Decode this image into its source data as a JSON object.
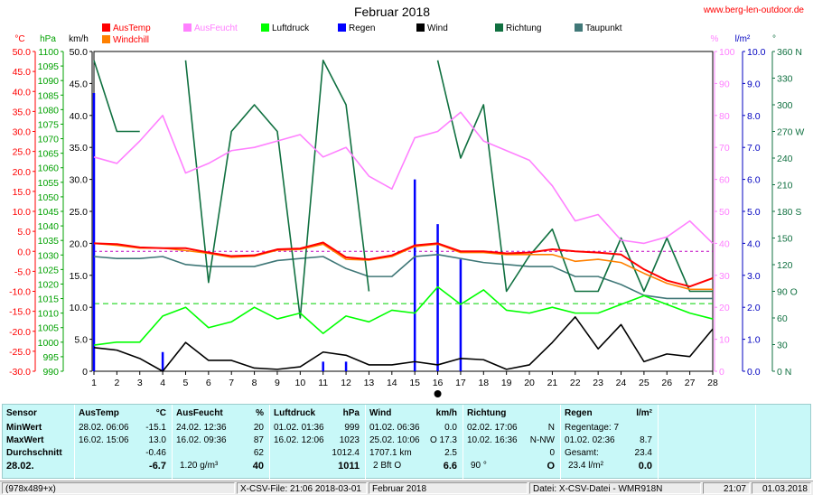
{
  "title": "Februar 2018",
  "website": "www.berg-len-outdoor.de",
  "legend": [
    {
      "label": "AusTemp",
      "color": "#ff0000"
    },
    {
      "label": "Windchill",
      "color": "#ff8000"
    },
    {
      "label": "AusFeucht",
      "color": "#ff80ff"
    },
    {
      "label": "Luftdruck",
      "color": "#00ff00"
    },
    {
      "label": "Regen",
      "color": "#0000ff"
    },
    {
      "label": "Wind",
      "color": "#000000"
    },
    {
      "label": "Richtung",
      "color": "#107040"
    },
    {
      "label": "Taupunkt",
      "color": "#407878"
    }
  ],
  "axes": {
    "temp": {
      "unit": "°C",
      "color": "#ff0000",
      "ticks": [
        "50.0",
        "45.0",
        "40.0",
        "35.0",
        "30.0",
        "25.0",
        "20.0",
        "15.0",
        "10.0",
        "5.0",
        "0.0",
        "-5.0",
        "-10.0",
        "-15.0",
        "-20.0",
        "-25.0",
        "-30.0"
      ]
    },
    "pressure": {
      "unit": "hPa",
      "color": "#00a000",
      "ticks": [
        "1100",
        "1095",
        "1090",
        "1085",
        "1080",
        "1075",
        "1070",
        "1065",
        "1060",
        "1055",
        "1050",
        "1045",
        "1040",
        "1035",
        "1030",
        "1025",
        "1020",
        "1015",
        "1010",
        "1005",
        "1000",
        "995",
        "990"
      ]
    },
    "wind": {
      "unit": "km/h",
      "color": "#000000",
      "ticks": [
        "50.0",
        "45.0",
        "40.0",
        "35.0",
        "30.0",
        "25.0",
        "20.0",
        "15.0",
        "10.0",
        "5.0",
        "0"
      ]
    },
    "humidity": {
      "unit": "%",
      "color": "#ff80ff",
      "ticks": [
        "100",
        "90",
        "80",
        "70",
        "60",
        "50",
        "40",
        "30",
        "20",
        "10",
        "0"
      ]
    },
    "rain": {
      "unit": "l/m²",
      "color": "#0000c0",
      "ticks": [
        "10.0",
        "9.0",
        "8.0",
        "7.0",
        "6.0",
        "5.0",
        "4.0",
        "3.0",
        "2.0",
        "1.0",
        "0.0"
      ]
    },
    "direction": {
      "unit": "°",
      "color": "#107040",
      "ticks": [
        "360 N",
        "330",
        "300",
        "270 W",
        "240",
        "210",
        "180 S",
        "150",
        "120",
        "90 O",
        "60",
        "30",
        "0 N"
      ]
    }
  },
  "chart_data": {
    "type": "line",
    "title": "Februar 2018",
    "x": [
      1,
      2,
      3,
      4,
      5,
      6,
      7,
      8,
      9,
      10,
      11,
      12,
      13,
      14,
      15,
      16,
      17,
      18,
      19,
      20,
      21,
      22,
      23,
      24,
      25,
      26,
      27,
      28
    ],
    "series": [
      {
        "name": "AusTemp",
        "unit": "°C",
        "values": [
          2.0,
          1.8,
          1.0,
          0.8,
          0.8,
          -0.3,
          -1.2,
          -1.0,
          0.5,
          0.7,
          2.2,
          -1.5,
          -2.0,
          -1.0,
          1.5,
          2.0,
          0.0,
          0.0,
          -0.5,
          -0.3,
          0.5,
          0.0,
          -0.3,
          -0.8,
          -4.5,
          -7.3,
          -8.8,
          -6.7
        ]
      },
      {
        "name": "Windchill",
        "unit": "°C",
        "values": [
          2.0,
          1.5,
          0.8,
          0.8,
          0.2,
          -0.5,
          -1.5,
          -1.2,
          0.3,
          0.5,
          1.8,
          -2.0,
          -2.2,
          -1.3,
          1.2,
          1.8,
          -0.3,
          -0.3,
          -0.8,
          -0.8,
          -0.8,
          -2.5,
          -2.0,
          -2.8,
          -5.5,
          -8.0,
          -9.5,
          -9.5
        ]
      },
      {
        "name": "AusFeucht",
        "unit": "%",
        "values": [
          67,
          65,
          72,
          80,
          62,
          65,
          69,
          70,
          72,
          74,
          67,
          70,
          61,
          57,
          73,
          75,
          81,
          72,
          69,
          66,
          58,
          47,
          49,
          41,
          40,
          42,
          47,
          40
        ]
      },
      {
        "name": "Luftdruck",
        "unit": "hPa",
        "values": [
          999,
          1000,
          1000,
          1009,
          1012,
          1005,
          1007,
          1012,
          1008,
          1010,
          1003,
          1009,
          1007,
          1011,
          1010,
          1019,
          1013,
          1018,
          1011,
          1010,
          1012,
          1010,
          1010,
          1013,
          1016,
          1013,
          1010,
          1008
        ]
      },
      {
        "name": "Regen",
        "unit": "l/m²",
        "values": [
          8.7,
          0,
          0,
          0.6,
          0,
          0,
          0,
          0,
          0,
          0,
          0.3,
          0.3,
          0,
          0,
          6.0,
          4.6,
          3.5,
          0,
          0,
          0,
          0,
          0,
          0,
          0,
          0,
          0,
          0,
          0
        ]
      },
      {
        "name": "Wind",
        "unit": "km/h",
        "values": [
          3.7,
          3.3,
          2.0,
          0.0,
          4.5,
          1.7,
          1.7,
          0.5,
          0.3,
          0.7,
          3.0,
          2.5,
          1.0,
          1.0,
          1.5,
          1.0,
          2.0,
          1.8,
          0.3,
          1.0,
          4.5,
          8.5,
          3.5,
          7.3,
          1.5,
          2.7,
          2.3,
          6.6
        ]
      },
      {
        "name": "Richtung",
        "unit": "°",
        "values": [
          350,
          270,
          270,
          null,
          350,
          100,
          270,
          300,
          270,
          60,
          350,
          300,
          90,
          null,
          null,
          350,
          240,
          300,
          90,
          130,
          160,
          90,
          90,
          150,
          90,
          150,
          90,
          90
        ]
      },
      {
        "name": "Taupunkt",
        "unit": "°C",
        "values": [
          -1.3,
          -1.8,
          -1.8,
          -1.3,
          -3.3,
          -3.8,
          -3.8,
          -3.8,
          -2.3,
          -1.8,
          -1.3,
          -4.3,
          -6.3,
          -6.3,
          -1.3,
          -0.8,
          -1.8,
          -2.8,
          -3.3,
          -3.8,
          -3.8,
          -6.3,
          -6.3,
          -8.3,
          -11.0,
          -11.8,
          -11.8,
          -11.8
        ]
      }
    ],
    "xlim": [
      1,
      28
    ],
    "ylim_temp": [
      -30,
      50
    ],
    "ylim_pressure": [
      990,
      1100
    ],
    "ylim_wind": [
      0,
      50
    ],
    "ylim_humidity": [
      0,
      100
    ],
    "ylim_rain": [
      0,
      10
    ],
    "ylim_direction": [
      0,
      360
    ],
    "grid": false,
    "legend_position": "top"
  },
  "stats": {
    "sensor": {
      "header": "Sensor",
      "rows": [
        "MinWert",
        "MaxWert",
        "Durchschnitt",
        "28.02."
      ]
    },
    "austemp": {
      "header": "AusTemp",
      "unit": "°C",
      "min_date": "28.02.  06:06",
      "min": "-15.1",
      "max_date": "16.02.  15:06",
      "max": "13.0",
      "avg": "-0.46",
      "today": "-6.7"
    },
    "ausfeucht": {
      "header": "AusFeucht",
      "unit": "%",
      "min_date": "24.02.  12:36",
      "min": "20",
      "max_date": "16.02.  09:36",
      "max": "87",
      "avg": "62",
      "today_extra": "1.20 g/m³",
      "today": "40"
    },
    "luftdruck": {
      "header": "Luftdruck",
      "unit": "hPa",
      "min_date": "01.02.  01:36",
      "min": "999",
      "max_date": "16.02.  12:06",
      "max": "1023",
      "avg": "1012.4",
      "today": "1011"
    },
    "wind": {
      "header": "Wind",
      "unit": "km/h",
      "min_date": "01.02.  06:36",
      "min": "0.0",
      "max_date": "25.02.  10:06",
      "max": "O 17.3",
      "avg_extra": "1707.1 km",
      "avg": "2.5",
      "today_extra": "2 Bft O",
      "today": "6.6"
    },
    "richtung": {
      "header": "Richtung",
      "min_date": "02.02.  17:06",
      "min": "N",
      "max_date": "10.02.  16:36",
      "max": "N-NW",
      "avg": "0",
      "today_extra": "90 °",
      "today": "O"
    },
    "regen": {
      "header": "Regen",
      "unit": "l/m²",
      "days": "Regentage: 7",
      "max_date": "01.02.  02:36",
      "max": "8.7",
      "total_label": "Gesamt:",
      "total": "23.4",
      "today_extra": "23.4 l/m²",
      "today": "0.0"
    }
  },
  "status": {
    "size": "(978x489+x)",
    "file": "X-CSV-File:  21:06  2018-03-01",
    "month": "Februar 2018",
    "source": "Datei: X-CSV-Datei - WMR918N",
    "time": "21:07",
    "date": "01.03.2018"
  }
}
